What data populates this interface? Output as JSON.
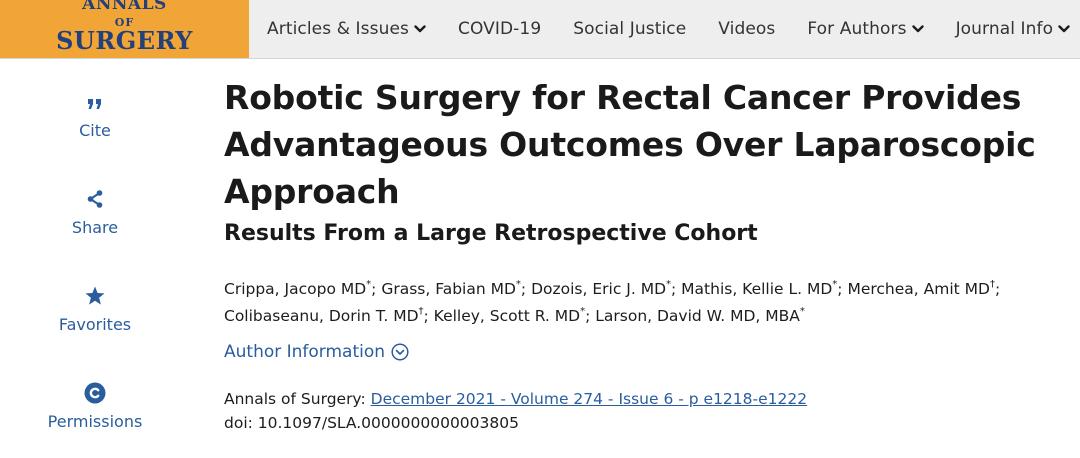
{
  "header": {
    "logo": {
      "line1": "ANNALS",
      "line2": "OF",
      "line3": "SURGERY"
    },
    "nav": [
      {
        "label": "Articles & Issues",
        "dropdown": true
      },
      {
        "label": "COVID-19",
        "dropdown": false
      },
      {
        "label": "Social Justice",
        "dropdown": false
      },
      {
        "label": "Videos",
        "dropdown": false
      },
      {
        "label": "For Authors",
        "dropdown": true
      },
      {
        "label": "Journal Info",
        "dropdown": true
      }
    ]
  },
  "sidebar": {
    "items": [
      {
        "label": "Cite",
        "icon": "quote-icon"
      },
      {
        "label": "Share",
        "icon": "share-icon"
      },
      {
        "label": "Favorites",
        "icon": "star-icon"
      },
      {
        "label": "Permissions",
        "icon": "copyright-icon"
      }
    ]
  },
  "article": {
    "title": "Robotic Surgery for Rectal Cancer Provides Advantageous Outcomes Over Laparoscopic Approach",
    "subtitle": "Results From a Large Retrospective Cohort",
    "authors": [
      {
        "name": "Crippa, Jacopo MD",
        "mark": "*"
      },
      {
        "name": "Grass, Fabian MD",
        "mark": "*"
      },
      {
        "name": "Dozois, Eric J. MD",
        "mark": "*"
      },
      {
        "name": "Mathis, Kellie L. MD",
        "mark": "*"
      },
      {
        "name": "Merchea, Amit MD",
        "mark": "†"
      },
      {
        "name": "Colibaseanu, Dorin T. MD",
        "mark": "†"
      },
      {
        "name": "Kelley, Scott R. MD",
        "mark": "*"
      },
      {
        "name": "Larson, David W. MD, MBA",
        "mark": "*"
      }
    ],
    "author_info_label": "Author Information",
    "journal_label": "Annals of Surgery:",
    "issue_link": "December 2021 - Volume 274 - Issue 6 - p e1218-e1222",
    "doi": "doi: 10.1097/SLA.0000000000003805"
  },
  "colors": {
    "brand_orange": "#f2a537",
    "brand_navy": "#24407a",
    "link_blue": "#2a5d9e",
    "nav_bg": "#eeeeee"
  }
}
